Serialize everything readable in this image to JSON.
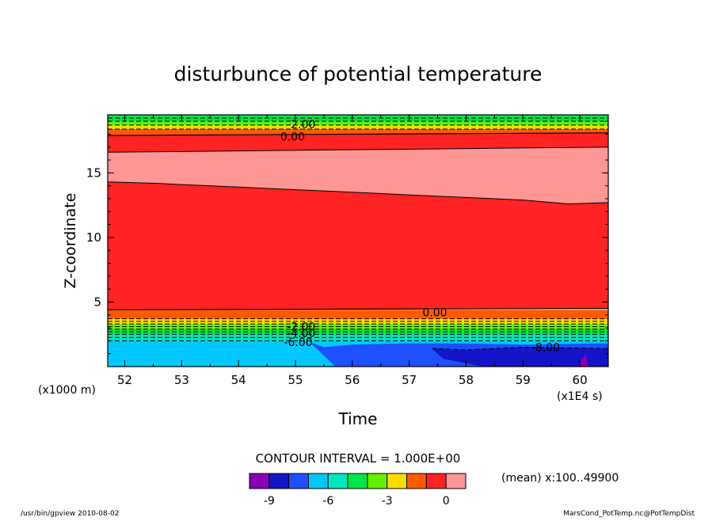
{
  "chart_data": {
    "type": "heatmap",
    "title": "disturbunce of potential temperature",
    "xlabel": "Time",
    "ylabel": "Z-coordinate",
    "x_unit": "(x1E4 s)",
    "y_unit": "(x1000 m)",
    "xlim": [
      51.7,
      60.5
    ],
    "ylim": [
      0,
      19.5
    ],
    "x_ticks": [
      52,
      53,
      54,
      55,
      56,
      57,
      58,
      59,
      60
    ],
    "y_ticks": [
      5,
      10,
      15
    ],
    "contour_interval_text": "CONTOUR INTERVAL = 1.000E+00",
    "mean_text": "(mean) x:100..49900",
    "colorbar": {
      "colors": [
        "#8a00b4",
        "#1414c8",
        "#1e50ff",
        "#00c8ff",
        "#00e6be",
        "#00e646",
        "#64f000",
        "#ffdc00",
        "#ff5a00",
        "#ff2323",
        "#ff9696"
      ],
      "tick_values": [
        -9,
        -6,
        -3,
        0
      ],
      "tick_labels": [
        "-9",
        "-6",
        "-3",
        "0"
      ]
    },
    "levels": [
      {
        "name": "top_green",
        "value": -4,
        "color": "#00e646",
        "y_bottom": 19.0
      },
      {
        "name": "lime",
        "value": -3,
        "color": "#64f000",
        "y_bottom": 18.7
      },
      {
        "name": "yellow",
        "value": -2,
        "color": "#ffdc00",
        "y_bottom": 18.4
      },
      {
        "name": "orange",
        "value": -1,
        "color": "#ff5a00",
        "y_bottom": 17.9
      },
      {
        "name": "pink_band",
        "value": 1,
        "color": "#ff9696"
      },
      {
        "name": "red_core",
        "value": 0,
        "color": "#ff2323"
      }
    ],
    "boundaries": {
      "orange_top": {
        "x": [
          51.7,
          60.5
        ],
        "y": [
          17.9,
          18.1
        ]
      },
      "pink_top": {
        "x": [
          51.7,
          60.5
        ],
        "y": [
          16.6,
          17.0
        ]
      },
      "pink_bottom": {
        "x": [
          51.7,
          52.5,
          54.0,
          56.0,
          58.0,
          59.0,
          59.8,
          60.5
        ],
        "y": [
          14.3,
          14.2,
          13.9,
          13.5,
          13.1,
          12.9,
          12.6,
          12.7
        ]
      },
      "red_bottom": {
        "x": [
          51.7,
          60.5
        ],
        "y": [
          4.4,
          4.5
        ]
      },
      "cyan_top": {
        "x": [
          51.7,
          60.5
        ],
        "y": [
          2.0,
          1.9
        ]
      }
    },
    "lower_bands": [
      {
        "value": -1,
        "color": "#ff5a00",
        "y_range": [
          3.7,
          4.4
        ]
      },
      {
        "value": -2,
        "color": "#ffdc00",
        "y_range": [
          3.3,
          3.7
        ]
      },
      {
        "value": -3,
        "color": "#64f000",
        "y_range": [
          2.9,
          3.3
        ]
      },
      {
        "value": -4,
        "color": "#00e646",
        "y_range": [
          2.5,
          2.9
        ]
      },
      {
        "value": -5,
        "color": "#00e6be",
        "y_range": [
          2.0,
          2.5
        ]
      },
      {
        "value": -6,
        "color": "#00c8ff",
        "y_range": [
          0,
          2.0
        ]
      }
    ],
    "blue_region": {
      "x": [
        55.25,
        55.5,
        56.0,
        57.0,
        58.0,
        59.0,
        60.5,
        60.5,
        55.7,
        55.25
      ],
      "y": [
        1.9,
        1.5,
        1.7,
        1.8,
        1.8,
        1.7,
        1.8,
        0,
        0,
        1.9
      ],
      "value": -7,
      "color": "#1e50ff"
    },
    "dark_blue_region": {
      "x": [
        57.4,
        58.0,
        59.0,
        60.5,
        60.5,
        58.3,
        57.6,
        57.4
      ],
      "y": [
        1.4,
        1.3,
        1.5,
        1.4,
        0,
        0,
        0.6,
        1.4
      ],
      "value": -8,
      "color": "#1414c8"
    },
    "purple_region": {
      "x": [
        59.95,
        60.1,
        60.15,
        59.95
      ],
      "y": [
        0,
        1.0,
        0,
        0
      ],
      "value": -9,
      "color": "#8a00b4"
    },
    "contour_labels": [
      {
        "text": "-2.00",
        "x": 55.1,
        "y": 18.75
      },
      {
        "text": "0.00",
        "x": 54.95,
        "y": 17.8
      },
      {
        "text": "0.00",
        "x": 57.45,
        "y": 4.2
      },
      {
        "text": "-2.00",
        "x": 55.1,
        "y": 3.1
      },
      {
        "text": "-4.00",
        "x": 55.1,
        "y": 2.6
      },
      {
        "text": "-6.00",
        "x": 55.05,
        "y": 1.9
      },
      {
        "text": "-8.00",
        "x": 59.4,
        "y": 1.5
      }
    ],
    "grid": false
  },
  "footer": {
    "left": "/usr/bin/gpview  2010-08-02",
    "right": "MarsCond_PotTemp.nc@PotTempDist"
  }
}
